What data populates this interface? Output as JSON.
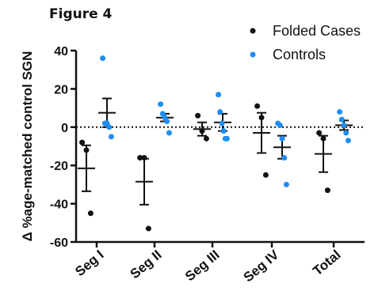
{
  "figure_label": "Figure 4",
  "chart_data": {
    "type": "scatter",
    "ylabel": "Δ %age-matched control SGN",
    "ylim": [
      -60,
      40
    ],
    "yticks": [
      -60,
      -40,
      -20,
      0,
      20,
      40
    ],
    "categories": [
      "Seg I",
      "Seg II",
      "Seg III",
      "Seg IV",
      "Total"
    ],
    "reference_line": {
      "y": 0,
      "style": "dotted"
    },
    "legend_position": "top-right",
    "series": [
      {
        "name": "Folded Cases",
        "color": "#111111",
        "points": [
          [
            -8,
            -12,
            -45
          ],
          [
            -16,
            -16,
            -53
          ],
          [
            6,
            -2,
            -6
          ],
          [
            11,
            5,
            -25
          ],
          [
            -3,
            -6,
            -33
          ]
        ],
        "mean": [
          -21.5,
          -28.5,
          -1,
          -3,
          -14
        ],
        "sem": [
          12,
          12,
          3.5,
          10.5,
          9.5
        ]
      },
      {
        "name": "Controls",
        "color": "#1f8ef1",
        "points": [
          [
            36,
            2,
            2,
            0,
            -5
          ],
          [
            12,
            7,
            5,
            3,
            -3
          ],
          [
            17,
            8,
            2,
            -2,
            -6,
            -6
          ],
          [
            2,
            1,
            -6,
            -16,
            -30
          ],
          [
            8,
            4,
            1,
            -3,
            -7
          ]
        ],
        "mean": [
          7.5,
          5,
          2.5,
          -10.5,
          1
        ],
        "sem": [
          7.5,
          2,
          4.5,
          6,
          2.5
        ]
      }
    ]
  }
}
